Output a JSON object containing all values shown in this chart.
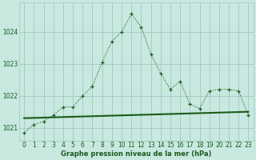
{
  "hours": [
    0,
    1,
    2,
    3,
    4,
    5,
    6,
    7,
    8,
    9,
    10,
    11,
    12,
    13,
    14,
    15,
    16,
    17,
    18,
    19,
    20,
    21,
    22,
    23
  ],
  "pressure": [
    1020.85,
    1021.1,
    1021.2,
    1021.4,
    1021.65,
    1021.65,
    1022.0,
    1022.3,
    1023.05,
    1023.7,
    1024.0,
    1024.55,
    1024.15,
    1023.3,
    1022.7,
    1022.2,
    1022.45,
    1021.75,
    1021.6,
    1022.15,
    1022.2,
    1022.2,
    1022.15,
    1021.4
  ],
  "trend_x": [
    0,
    23
  ],
  "trend_y": [
    1021.3,
    1021.5
  ],
  "bg_color": "#c8e8e0",
  "grid_color": "#a0c8c0",
  "line_color": "#1a5c1a",
  "xlabel": "Graphe pression niveau de la mer (hPa)",
  "ylim": [
    1020.6,
    1024.9
  ],
  "yticks": [
    1021,
    1022,
    1023,
    1024
  ],
  "xticks": [
    0,
    1,
    2,
    3,
    4,
    5,
    6,
    7,
    8,
    9,
    10,
    11,
    12,
    13,
    14,
    15,
    16,
    17,
    18,
    19,
    20,
    21,
    22,
    23
  ]
}
